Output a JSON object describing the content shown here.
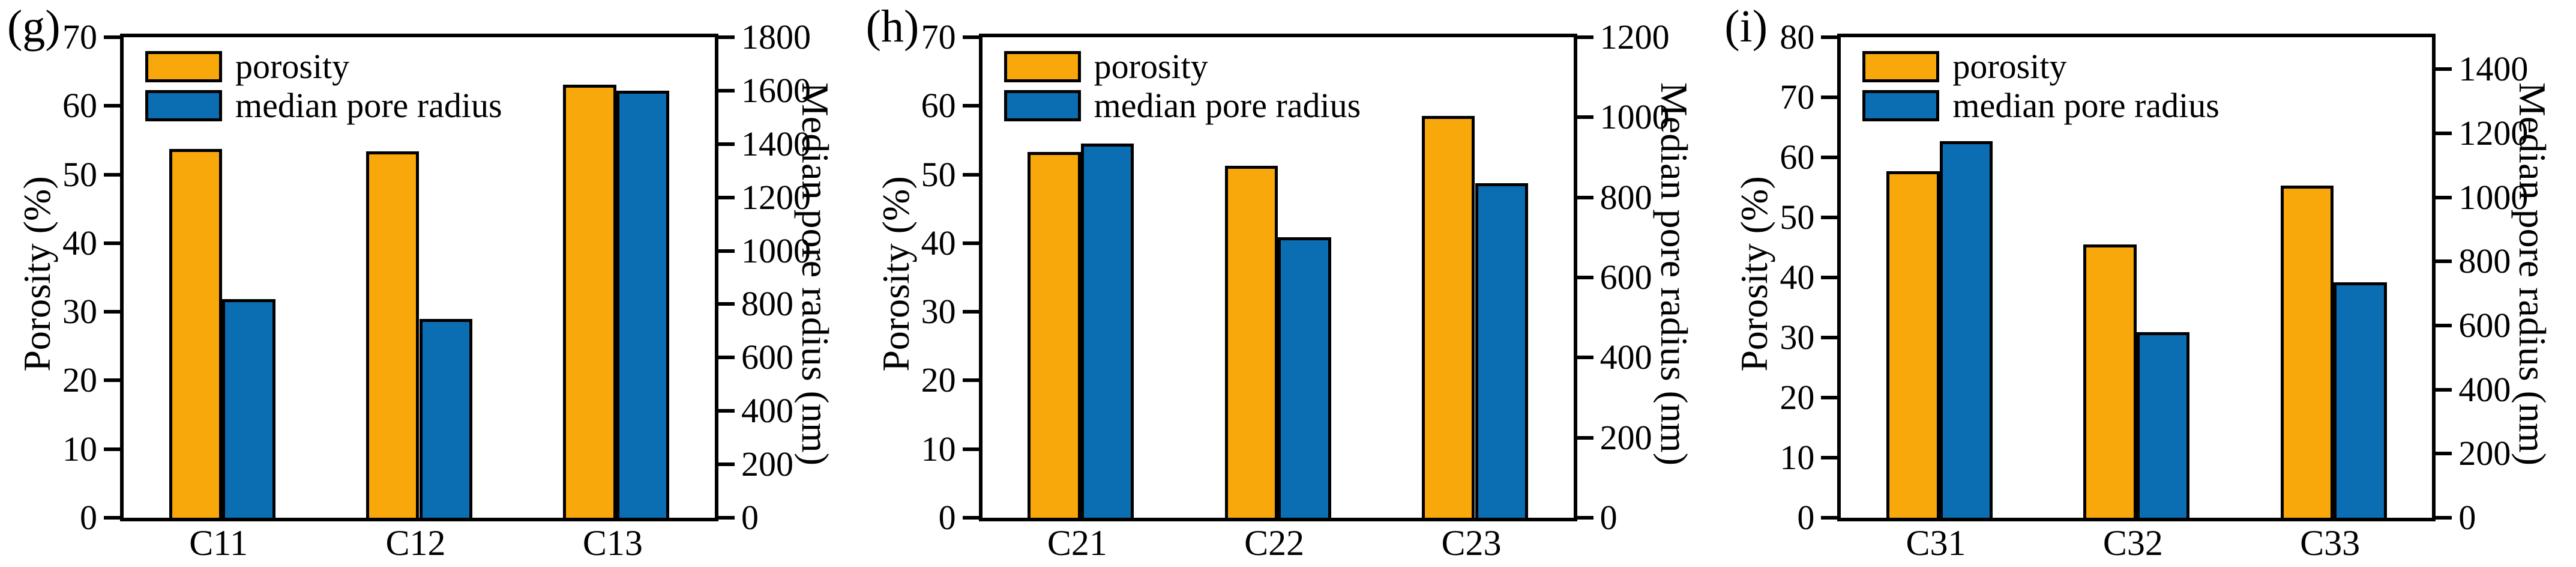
{
  "figure": {
    "background": "#ffffff",
    "axis_color": "#000000",
    "porosity_color": "#F8A80B",
    "median_pore_radius_color": "#0B6DB2"
  },
  "chart_data": [
    {
      "type": "bar",
      "panel_label": "(g)",
      "title": "",
      "grid": false,
      "legend_position": "top-left",
      "categories": [
        "C11",
        "C12",
        "C13"
      ],
      "series": [
        {
          "name": "porosity",
          "axis": "left",
          "color": "#F8A80B",
          "values": [
            53.7,
            53.4,
            63.1
          ]
        },
        {
          "name": "median pore radius",
          "axis": "right",
          "color": "#0B6DB2",
          "values": [
            820,
            745,
            1600
          ]
        }
      ],
      "left_axis": {
        "title": "Porosity (%)",
        "min": 0,
        "max": 70,
        "ticks": [
          0,
          10,
          20,
          30,
          40,
          50,
          60,
          70
        ]
      },
      "right_axis": {
        "title": "Median pore radius (nm)",
        "min": 0,
        "max": 1800,
        "ticks": [
          0,
          200,
          400,
          600,
          800,
          1000,
          1200,
          1400,
          1600,
          1800
        ]
      }
    },
    {
      "type": "bar",
      "panel_label": "(h)",
      "title": "",
      "grid": false,
      "legend_position": "top-left",
      "categories": [
        "C21",
        "C22",
        "C23"
      ],
      "series": [
        {
          "name": "porosity",
          "axis": "left",
          "color": "#F8A80B",
          "values": [
            53.3,
            51.3,
            58.5
          ]
        },
        {
          "name": "median pore radius",
          "axis": "right",
          "color": "#0B6DB2",
          "values": [
            935,
            700,
            835
          ]
        }
      ],
      "left_axis": {
        "title": "Porosity (%)",
        "min": 0,
        "max": 70,
        "ticks": [
          0,
          10,
          20,
          30,
          40,
          50,
          60,
          70
        ]
      },
      "right_axis": {
        "title": "Median pore radius (nm)",
        "min": 0,
        "max": 1200,
        "ticks": [
          0,
          200,
          400,
          600,
          800,
          1000,
          1200
        ]
      }
    },
    {
      "type": "bar",
      "panel_label": "(i)",
      "title": "",
      "grid": false,
      "legend_position": "top-left",
      "categories": [
        "C31",
        "C32",
        "C33"
      ],
      "series": [
        {
          "name": "porosity",
          "axis": "left",
          "color": "#F8A80B",
          "values": [
            57.7,
            45.5,
            55.3
          ]
        },
        {
          "name": "median pore radius",
          "axis": "right",
          "color": "#0B6DB2",
          "values": [
            1175,
            580,
            735
          ]
        }
      ],
      "left_axis": {
        "title": "Porosity (%)",
        "min": 0,
        "max": 80,
        "ticks": [
          0,
          10,
          20,
          30,
          40,
          50,
          60,
          70,
          80
        ]
      },
      "right_axis": {
        "title": "Median pore radius (nm)",
        "min": 0,
        "max": 1500,
        "ticks": [
          0,
          200,
          400,
          600,
          800,
          1000,
          1200,
          1400
        ]
      }
    }
  ]
}
